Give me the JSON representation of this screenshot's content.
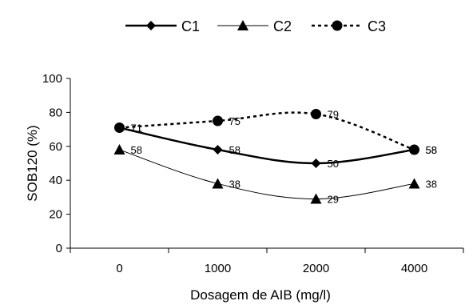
{
  "chart_data": {
    "type": "line",
    "categories": [
      "0",
      "1000",
      "2000",
      "4000"
    ],
    "ylabel": "SOB120 (%)",
    "xlabel": "Dosagem  de AIB (mg/l)",
    "ylim": [
      0,
      100
    ],
    "yticks": [
      "0",
      "20",
      "40",
      "60",
      "80",
      "100"
    ],
    "legend_position": "top",
    "series": [
      {
        "name": "C1",
        "marker": "diamond",
        "line": "solid-thick",
        "values": [
          71,
          58,
          50,
          58
        ],
        "labels": [
          "71",
          "58",
          "50",
          "58"
        ]
      },
      {
        "name": "C2",
        "marker": "triangle",
        "line": "solid-thin",
        "values": [
          58,
          38,
          29,
          38
        ],
        "labels": [
          "58",
          "38",
          "29",
          "38"
        ]
      },
      {
        "name": "C3",
        "marker": "circle",
        "line": "dotted",
        "values": [
          71,
          75,
          79,
          58
        ],
        "labels": [
          "71",
          "75",
          "79",
          "58"
        ]
      }
    ],
    "colors": {
      "line": "#000000",
      "background": "#ffffff"
    }
  }
}
